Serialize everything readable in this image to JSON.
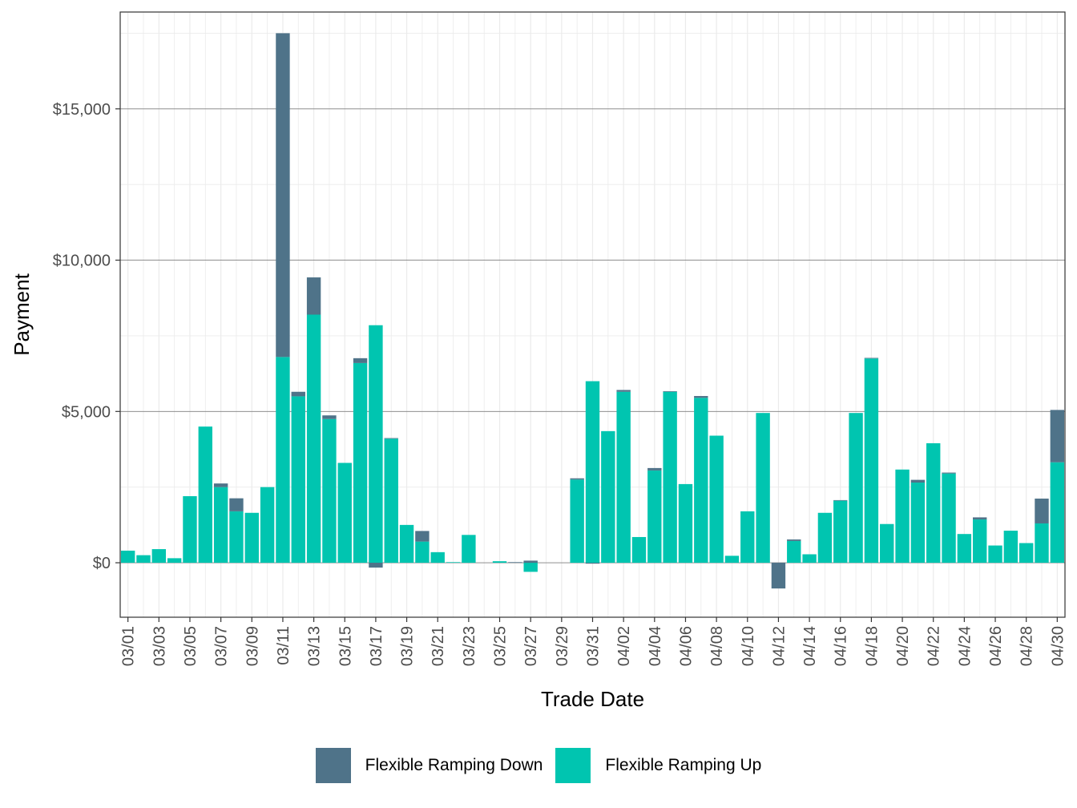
{
  "chart_data": {
    "type": "bar",
    "stacked": true,
    "xlabel": "Trade Date",
    "ylabel": "Payment",
    "ylim": [
      -1800,
      18200
    ],
    "yticks": [
      0,
      5000,
      10000,
      15000
    ],
    "ytick_labels": [
      "$0",
      "$5,000",
      "$10,000",
      "$15,000"
    ],
    "grid": true,
    "legend_position": "bottom",
    "categories": [
      "03/01",
      "03/02",
      "03/03",
      "03/04",
      "03/05",
      "03/06",
      "03/07",
      "03/08",
      "03/09",
      "03/10",
      "03/11",
      "03/12",
      "03/13",
      "03/14",
      "03/15",
      "03/16",
      "03/17",
      "03/18",
      "03/19",
      "03/20",
      "03/21",
      "03/22",
      "03/23",
      "03/24",
      "03/25",
      "03/26",
      "03/27",
      "03/28",
      "03/29",
      "03/30",
      "03/31",
      "04/01",
      "04/02",
      "04/03",
      "04/04",
      "04/05",
      "04/06",
      "04/07",
      "04/08",
      "04/09",
      "04/10",
      "04/11",
      "04/12",
      "04/13",
      "04/14",
      "04/15",
      "04/16",
      "04/17",
      "04/18",
      "04/19",
      "04/20",
      "04/21",
      "04/22",
      "04/23",
      "04/24",
      "04/25",
      "04/26",
      "04/27",
      "04/28",
      "04/29",
      "04/30"
    ],
    "xtick_labels": [
      "03/01",
      "03/03",
      "03/05",
      "03/07",
      "03/09",
      "03/11",
      "03/13",
      "03/15",
      "03/17",
      "03/19",
      "03/21",
      "03/23",
      "03/25",
      "03/27",
      "03/29",
      "03/31",
      "04/02",
      "04/04",
      "04/06",
      "04/08",
      "04/10",
      "04/12",
      "04/14",
      "04/16",
      "04/18",
      "04/20",
      "04/22",
      "04/24",
      "04/26",
      "04/28",
      "04/30"
    ],
    "series": [
      {
        "name": "Flexible Ramping Up",
        "color": "#00c5b0",
        "values": [
          400,
          250,
          450,
          150,
          2200,
          4500,
          2500,
          1700,
          1650,
          2500,
          6800,
          5500,
          8200,
          4750,
          3300,
          6600,
          7850,
          4100,
          1250,
          700,
          350,
          20,
          920,
          0,
          50,
          0,
          -300,
          0,
          0,
          2750,
          6000,
          4350,
          5650,
          850,
          3050,
          5650,
          2600,
          5450,
          4200,
          230,
          1700,
          4950,
          0,
          720,
          280,
          1650,
          2050,
          4950,
          6750,
          1280,
          3080,
          2650,
          3950,
          2950,
          950,
          1430,
          570,
          1060,
          650,
          1300,
          3320
        ]
      },
      {
        "name": "Flexible Ramping Down",
        "color": "#4f7389",
        "values": [
          0,
          0,
          0,
          0,
          0,
          0,
          120,
          430,
          0,
          0,
          10700,
          150,
          1230,
          120,
          0,
          160,
          -160,
          20,
          0,
          350,
          0,
          0,
          0,
          0,
          0,
          20,
          70,
          0,
          0,
          40,
          -30,
          0,
          60,
          0,
          80,
          20,
          0,
          60,
          0,
          0,
          0,
          0,
          -850,
          50,
          0,
          0,
          20,
          0,
          20,
          0,
          0,
          90,
          0,
          30,
          0,
          70,
          0,
          0,
          0,
          820,
          1730
        ]
      }
    ]
  }
}
